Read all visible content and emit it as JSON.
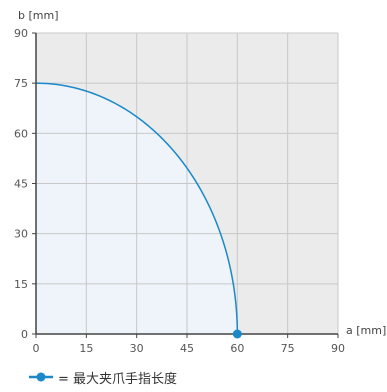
{
  "chart_data": {
    "type": "area",
    "xlabel": "a [mm]",
    "ylabel": "b [mm]",
    "xlim": [
      0,
      90
    ],
    "ylim": [
      0,
      90
    ],
    "xticks": [
      0,
      15,
      30,
      45,
      60,
      75,
      90
    ],
    "yticks": [
      0,
      15,
      30,
      45,
      60,
      75,
      90
    ],
    "grid": true,
    "series": [
      {
        "name": "最大夹爪手指长度",
        "shape": "quarter-ellipse",
        "a_max": 60,
        "b_max": 75,
        "marker_point": {
          "a": 60,
          "b": 0
        }
      }
    ],
    "legend_position": "bottom-left",
    "colors": {
      "curve": "#1a88c9",
      "inside_fill": "#eef4fa",
      "outside_fill": "#ebebeb",
      "grid": "#c8c8c8",
      "axis": "#444444"
    }
  },
  "legend": {
    "label": "= 最大夹爪手指长度"
  }
}
